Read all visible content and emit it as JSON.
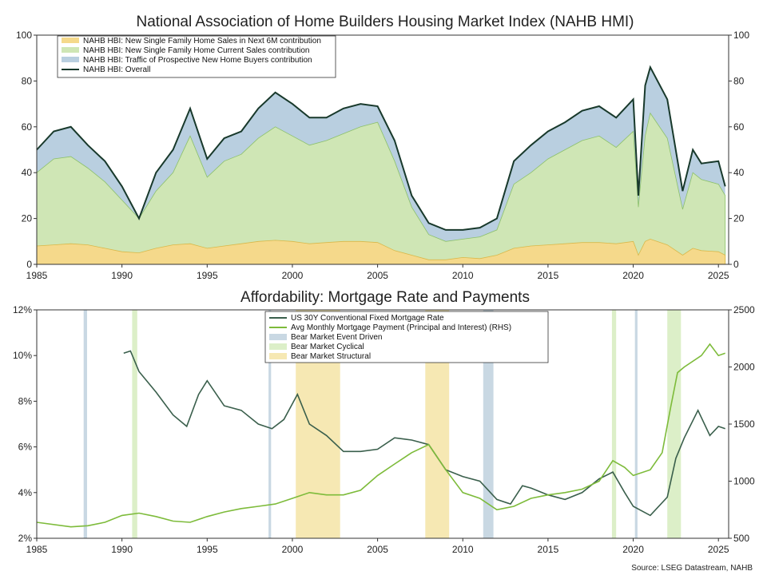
{
  "colors": {
    "new_sales_6m": "#f5d98b",
    "current_sales": "#cfe6b5",
    "traffic": "#b9cfe0",
    "overall": "#18392b",
    "mortgage_rate": "#3a5f4c",
    "monthly_payment": "#7dbb3a",
    "bear_event": "#c9d8e3",
    "bear_cyclical": "#dcefc8",
    "bear_structural": "#f6e8b3"
  },
  "source": "Source: LSEG Datastream, NAHB",
  "chart_data": [
    {
      "type": "area",
      "title": "National Association of Home Builders Housing Market Index (NAHB HMI)",
      "x_ticks": [
        "1985",
        "1990",
        "1995",
        "2000",
        "2005",
        "2010",
        "2015",
        "2020",
        "2025"
      ],
      "x_range": [
        1985,
        2025.6
      ],
      "ylim": [
        0,
        100
      ],
      "y_ticks_left": [
        "0",
        "20",
        "40",
        "60",
        "80",
        "100"
      ],
      "y_ticks_right": [
        "0",
        "20",
        "40",
        "60",
        "80",
        "100"
      ],
      "legend_position": "top-left",
      "series": [
        {
          "name": "NAHB HBI: New Single Family Home Sales in Next 6M contribution",
          "key": "new_sales_6m",
          "x": [
            1985,
            1986,
            1987,
            1988,
            1989,
            1990,
            1991,
            1992,
            1993,
            1994,
            1995,
            1996,
            1997,
            1998,
            1999,
            2000,
            2001,
            2002,
            2003,
            2004,
            2005,
            2006,
            2007,
            2008,
            2009,
            2010,
            2011,
            2012,
            2013,
            2014,
            2015,
            2016,
            2017,
            2018,
            2019,
            2020,
            2020.3,
            2020.7,
            2021,
            2022,
            2022.9,
            2023.5,
            2024,
            2025,
            2025.4
          ],
          "values": [
            8,
            8.5,
            9,
            8.5,
            7,
            5.5,
            5,
            7,
            8.5,
            9,
            7,
            8,
            9,
            10,
            10.5,
            10,
            9,
            9.5,
            10,
            10,
            9.5,
            6,
            4,
            2,
            2,
            3,
            2.5,
            4,
            7,
            8,
            8.5,
            9,
            9.5,
            9.5,
            9,
            10,
            4,
            10,
            11,
            8.5,
            4,
            7,
            6,
            5.5,
            4
          ]
        },
        {
          "name": "NAHB HBI: New Single Family Home Current Sales contribution",
          "key": "current_sales",
          "x": [
            1985,
            1986,
            1987,
            1988,
            1989,
            1990,
            1991,
            1992,
            1993,
            1994,
            1995,
            1996,
            1997,
            1998,
            1999,
            2000,
            2001,
            2002,
            2003,
            2004,
            2005,
            2006,
            2007,
            2008,
            2009,
            2010,
            2011,
            2012,
            2013,
            2014,
            2015,
            2016,
            2017,
            2018,
            2019,
            2020,
            2020.3,
            2020.7,
            2021,
            2022,
            2022.9,
            2023.5,
            2024,
            2025,
            2025.4
          ],
          "values": [
            40,
            46,
            47,
            42,
            36,
            28,
            20,
            32,
            40,
            56,
            38,
            45,
            48,
            55,
            60,
            56,
            52,
            54,
            57,
            60,
            62,
            45,
            25,
            13,
            10,
            11,
            12,
            15,
            35,
            40,
            46,
            50,
            54,
            56,
            51,
            58,
            25,
            56,
            66,
            55,
            24,
            40,
            37,
            35,
            30
          ]
        },
        {
          "name": "NAHB HBI: Traffic of Prospective New Home Buyers contribution",
          "key": "traffic",
          "x": [
            1985,
            1986,
            1987,
            1988,
            1989,
            1990,
            1991,
            1992,
            1993,
            1994,
            1995,
            1996,
            1997,
            1998,
            1999,
            2000,
            2001,
            2002,
            2003,
            2004,
            2005,
            2006,
            2007,
            2008,
            2009,
            2010,
            2011,
            2012,
            2013,
            2014,
            2015,
            2016,
            2017,
            2018,
            2019,
            2020,
            2020.3,
            2020.7,
            2021,
            2022,
            2022.9,
            2023.5,
            2024,
            2025,
            2025.4
          ],
          "values": [
            50,
            58,
            60,
            52,
            45,
            34,
            20,
            40,
            50,
            68,
            46,
            55,
            58,
            68,
            75,
            70,
            64,
            64,
            68,
            70,
            69,
            54,
            30,
            18,
            15,
            15,
            16,
            20,
            45,
            52,
            58,
            62,
            67,
            69,
            64,
            72,
            30,
            78,
            86,
            72,
            32,
            50,
            44,
            45,
            34
          ]
        },
        {
          "name": "NAHB HBI: Overall",
          "key": "overall",
          "x": [
            1985,
            1986,
            1987,
            1988,
            1989,
            1990,
            1991,
            1992,
            1993,
            1994,
            1995,
            1996,
            1997,
            1998,
            1999,
            2000,
            2001,
            2002,
            2003,
            2004,
            2005,
            2006,
            2007,
            2008,
            2009,
            2010,
            2011,
            2012,
            2013,
            2014,
            2015,
            2016,
            2017,
            2018,
            2019,
            2020,
            2020.3,
            2020.7,
            2021,
            2022,
            2022.9,
            2023.5,
            2024,
            2025,
            2025.4
          ],
          "values": [
            50,
            58,
            60,
            52,
            45,
            34,
            20,
            40,
            50,
            68,
            46,
            55,
            58,
            68,
            75,
            70,
            64,
            64,
            68,
            70,
            69,
            54,
            30,
            18,
            15,
            15,
            16,
            20,
            45,
            52,
            58,
            62,
            67,
            69,
            64,
            72,
            30,
            78,
            86,
            72,
            32,
            50,
            44,
            45,
            34
          ]
        }
      ]
    },
    {
      "type": "line",
      "title": "Affordability: Mortgage Rate and Payments",
      "x_ticks": [
        "1985",
        "1990",
        "1995",
        "2000",
        "2005",
        "2010",
        "2015",
        "2020",
        "2025"
      ],
      "x_range": [
        1985,
        2025.6
      ],
      "ylim_left": [
        2,
        12
      ],
      "ylim_right": [
        500,
        2500
      ],
      "y_ticks_left": [
        "2%",
        "4%",
        "6%",
        "8%",
        "10%",
        "12%"
      ],
      "y_ticks_right": [
        "500",
        "1000",
        "1500",
        "2000",
        "2500"
      ],
      "legend_position": "top-center",
      "series": [
        {
          "name": "US 30Y Conventional Fixed Mortgage Rate",
          "key": "mortgage_rate",
          "axis": "left",
          "x": [
            1990.1,
            1990.5,
            1991,
            1992,
            1993,
            1993.8,
            1994.5,
            1995,
            1996,
            1997,
            1998,
            1998.8,
            1999.5,
            2000.3,
            2001,
            2002,
            2003,
            2004,
            2005,
            2006,
            2007,
            2008,
            2009,
            2010,
            2011,
            2012,
            2012.8,
            2013.5,
            2014,
            2015,
            2016,
            2017,
            2018,
            2018.8,
            2019.5,
            2020,
            2021,
            2022,
            2022.5,
            2023,
            2023.8,
            2024.5,
            2025,
            2025.4
          ],
          "values": [
            10.1,
            10.2,
            9.3,
            8.4,
            7.4,
            6.9,
            8.3,
            8.9,
            7.8,
            7.6,
            7.0,
            6.8,
            7.2,
            8.3,
            7.0,
            6.5,
            5.8,
            5.8,
            5.9,
            6.4,
            6.3,
            6.1,
            5.0,
            4.7,
            4.5,
            3.7,
            3.5,
            4.3,
            4.2,
            3.9,
            3.7,
            4.0,
            4.6,
            4.9,
            4.0,
            3.4,
            3.0,
            3.8,
            5.5,
            6.4,
            7.6,
            6.5,
            6.9,
            6.8
          ]
        },
        {
          "name": "Avg Monthly Mortgage Payment (Principal and Interest) (RHS)",
          "key": "monthly_payment",
          "axis": "right",
          "x": [
            1985,
            1987,
            1988,
            1989,
            1990,
            1991,
            1992,
            1993,
            1994,
            1995,
            1996,
            1997,
            1998,
            1999,
            2000,
            2001,
            2002,
            2003,
            2004,
            2005,
            2006,
            2007,
            2008,
            2009,
            2010,
            2011,
            2012,
            2013,
            2014,
            2015,
            2016,
            2017,
            2018,
            2018.8,
            2019.5,
            2020,
            2021,
            2021.7,
            2022.2,
            2022.6,
            2023,
            2024,
            2024.5,
            2025,
            2025.4
          ],
          "values": [
            640,
            600,
            610,
            640,
            700,
            720,
            690,
            650,
            640,
            690,
            730,
            760,
            780,
            800,
            850,
            900,
            880,
            880,
            920,
            1050,
            1150,
            1250,
            1320,
            1100,
            900,
            850,
            750,
            780,
            850,
            880,
            900,
            930,
            1000,
            1180,
            1120,
            1050,
            1100,
            1250,
            1650,
            1950,
            2000,
            2100,
            2200,
            2100,
            2120
          ]
        }
      ],
      "shaded_periods": [
        {
          "name": "Bear Market Event Driven",
          "key": "bear_event",
          "spans": [
            [
              1987.75,
              1987.95
            ],
            [
              1998.6,
              1998.75
            ],
            [
              2011.2,
              2011.8
            ],
            [
              2020.1,
              2020.25
            ]
          ]
        },
        {
          "name": "Bear Market Cyclical",
          "key": "bear_cyclical",
          "spans": [
            [
              1990.6,
              1990.9
            ],
            [
              2018.75,
              2019.0
            ],
            [
              2022.0,
              2022.8
            ]
          ]
        },
        {
          "name": "Bear Market Structural",
          "key": "bear_structural",
          "spans": [
            [
              2000.2,
              2002.8
            ],
            [
              2007.8,
              2009.2
            ]
          ]
        }
      ]
    }
  ]
}
